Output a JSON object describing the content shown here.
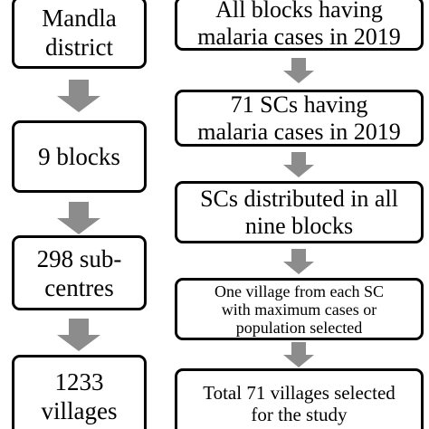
{
  "flowchart": {
    "left": {
      "step1": "Mandla\ndistrict",
      "step2": "9 blocks",
      "step3": "298 sub-\ncentres",
      "step4": "1233\nvillages"
    },
    "right": {
      "step1": "All blocks having\nmalaria cases in 2019",
      "step2": "71 SCs having\nmalaria cases in 2019",
      "step3": "SCs distributed in all\nnine blocks",
      "step4": "One village from each SC\nwith maximum cases or\npopulation selected",
      "step5": "Total 71 villages selected\nfor the study"
    },
    "arrow_color": "#8c8c8c",
    "border_color": "#000000"
  }
}
